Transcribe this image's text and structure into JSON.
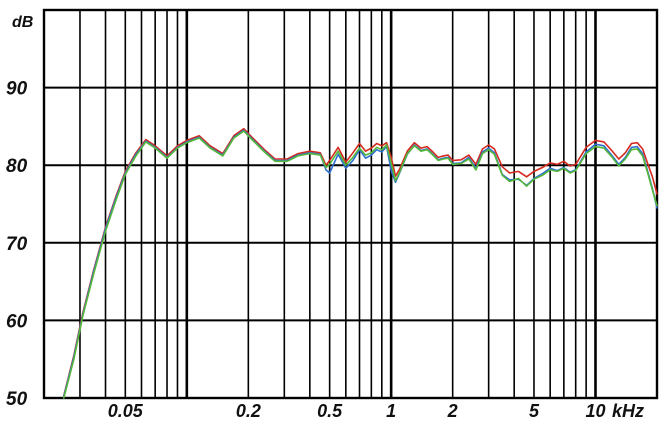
{
  "chart_data": {
    "type": "line",
    "xscale": "log",
    "xlim_hz": [
      20,
      20000
    ],
    "ylim": [
      50,
      100
    ],
    "ylabel": "dB",
    "yticks": [
      {
        "value": 90,
        "label": "90"
      },
      {
        "value": 80,
        "label": "80"
      },
      {
        "value": 70,
        "label": "70"
      },
      {
        "value": 60,
        "label": "60"
      },
      {
        "value": 50,
        "label": "50"
      }
    ],
    "xticks": [
      {
        "value": 50,
        "label": "0.05"
      },
      {
        "value": 200,
        "label": "0.2"
      },
      {
        "value": 500,
        "label": "0.5"
      },
      {
        "value": 1000,
        "label": "1"
      },
      {
        "value": 2000,
        "label": "2"
      },
      {
        "value": 5000,
        "label": "5"
      },
      {
        "value": 10000,
        "label": "10"
      }
    ],
    "xunit": "kHz",
    "grid": true,
    "x": [
      25,
      28,
      31,
      35,
      40,
      45,
      50,
      56,
      63,
      70,
      80,
      90,
      100,
      115,
      130,
      150,
      170,
      190,
      210,
      240,
      270,
      310,
      350,
      400,
      450,
      480,
      500,
      550,
      600,
      650,
      700,
      750,
      800,
      850,
      900,
      950,
      1000,
      1050,
      1100,
      1200,
      1300,
      1400,
      1500,
      1600,
      1700,
      1800,
      1900,
      2000,
      2200,
      2400,
      2600,
      2800,
      3000,
      3200,
      3500,
      3800,
      4200,
      4600,
      5000,
      5500,
      6000,
      6500,
      7000,
      7500,
      8000,
      9000,
      10000,
      11000,
      12000,
      13000,
      14000,
      15000,
      16000,
      17000,
      18000,
      19000,
      20000
    ],
    "series": [
      {
        "color": "#d42a1e",
        "values": [
          50.3,
          55.5,
          61,
          66.5,
          72,
          76,
          79.2,
          81.5,
          83.3,
          82.5,
          81.2,
          82.5,
          83.2,
          83.8,
          82.5,
          81.5,
          83.8,
          84.7,
          83.5,
          82,
          80.8,
          80.8,
          81.5,
          81.8,
          81.6,
          80,
          80.6,
          82.3,
          80.4,
          81.6,
          82.8,
          81.8,
          82.2,
          82.8,
          82.5,
          82.9,
          81,
          78.6,
          79.5,
          81.8,
          82.9,
          82.2,
          82.4,
          81.7,
          81,
          81.2,
          81.3,
          80.6,
          80.7,
          81.3,
          80.1,
          82.1,
          82.6,
          82.1,
          79.8,
          79,
          79.2,
          78.5,
          79.2,
          79.7,
          80.3,
          80.1,
          80.5,
          79.9,
          80.1,
          82.3,
          83.2,
          83,
          81.9,
          80.8,
          81.6,
          82.8,
          82.9,
          82.1,
          80.2,
          78.5,
          76.3
        ]
      },
      {
        "color": "#2e6fd0",
        "values": [
          50.2,
          55.3,
          60.8,
          66.3,
          71.8,
          75.8,
          79,
          81.3,
          83.1,
          82.3,
          81,
          82.3,
          83,
          83.6,
          82.3,
          81.3,
          83.6,
          84.5,
          83.3,
          81.8,
          80.6,
          80.6,
          81.3,
          81.6,
          81.4,
          79.4,
          79,
          81.4,
          79.6,
          80.6,
          82,
          80.9,
          81.3,
          82,
          81.7,
          82.4,
          79.3,
          77.8,
          79,
          81.4,
          82.6,
          81.9,
          82.1,
          81.4,
          80.7,
          80.9,
          81,
          80.2,
          80.3,
          81,
          79.6,
          81.7,
          82.2,
          81.6,
          78.8,
          78.1,
          78.2,
          77.4,
          78.3,
          78.9,
          79.6,
          79.3,
          79.7,
          79.1,
          79.4,
          81.7,
          82.7,
          82.5,
          81.3,
          80.1,
          81,
          82.3,
          82.4,
          81.5,
          79.2,
          77,
          74.5
        ]
      },
      {
        "color": "#55b83a",
        "values": [
          50,
          55,
          60.6,
          66,
          71.5,
          75.5,
          78.8,
          81.1,
          83,
          82.2,
          80.9,
          82.2,
          82.9,
          83.5,
          82.2,
          81.2,
          83.5,
          84.4,
          83.2,
          81.7,
          80.5,
          80.5,
          81.2,
          81.5,
          81.3,
          79.7,
          80.1,
          81.8,
          80,
          81,
          82.2,
          81.3,
          81.6,
          82.3,
          82,
          82.6,
          80.2,
          78,
          79.1,
          81.5,
          82.5,
          81.8,
          82,
          81.3,
          80.6,
          80.8,
          80.9,
          80.1,
          80.2,
          80.8,
          79.4,
          81.5,
          82,
          81.4,
          78.7,
          77.9,
          78.3,
          77.3,
          78.2,
          78.7,
          79.4,
          79.2,
          79.6,
          79,
          79.3,
          81.5,
          82.4,
          82.2,
          81.1,
          79.9,
          80.8,
          82,
          82.1,
          81.2,
          79,
          76.8,
          74.8
        ]
      }
    ]
  }
}
